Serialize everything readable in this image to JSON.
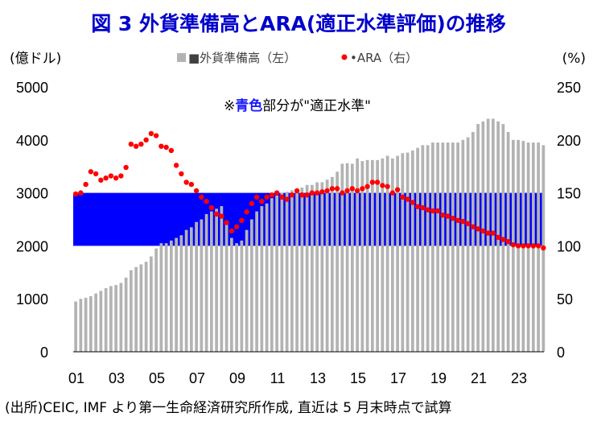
{
  "chart_data": {
    "type": "bar",
    "title": "図 3 外貨準備高とARA(適正水準評価)の推移",
    "left_unit": "(億ドル)",
    "right_unit": "(%)",
    "legend": [
      {
        "label": "■外貨準備高（左）",
        "marker": "bar"
      },
      {
        "label": "•ARA（右）",
        "marker": "dot"
      }
    ],
    "annotation": {
      "prefix": "※",
      "highlight": "青色",
      "suffix": "部分が\"適正水準\"",
      "highlight_color": "#1a1aff"
    },
    "left_axis": {
      "ylim": [
        0,
        5000
      ],
      "ticks": [
        "0",
        "1000",
        "2000",
        "3000",
        "4000",
        "5000"
      ]
    },
    "right_axis": {
      "ylim": [
        0,
        250
      ],
      "ticks": [
        "0",
        "50",
        "100",
        "150",
        "200",
        "250"
      ]
    },
    "x_axis": {
      "range_years": [
        2001,
        2024.4
      ],
      "tick_labels": [
        "01",
        "03",
        "05",
        "07",
        "09",
        "11",
        "13",
        "15",
        "17",
        "19",
        "21",
        "23"
      ],
      "tick_years": [
        2001,
        2003,
        2005,
        2007,
        2009,
        2011,
        2013,
        2015,
        2017,
        2019,
        2021,
        2023
      ]
    },
    "adequacy_band": {
      "from": 100,
      "to": 150,
      "axis": "right",
      "color": "#0000ff"
    },
    "bar_color": "#b3b3b3",
    "dot_color": "#ff0000",
    "reserves": {
      "dates": [
        2001.0,
        2001.25,
        2001.5,
        2001.75,
        2002.0,
        2002.25,
        2002.5,
        2002.75,
        2003.0,
        2003.25,
        2003.5,
        2003.75,
        2004.0,
        2004.25,
        2004.5,
        2004.75,
        2005.0,
        2005.25,
        2005.5,
        2005.75,
        2006.0,
        2006.25,
        2006.5,
        2006.75,
        2007.0,
        2007.25,
        2007.5,
        2007.75,
        2008.0,
        2008.25,
        2008.5,
        2008.75,
        2009.0,
        2009.25,
        2009.5,
        2009.75,
        2010.0,
        2010.25,
        2010.5,
        2010.75,
        2011.0,
        2011.25,
        2011.5,
        2011.75,
        2012.0,
        2012.25,
        2012.5,
        2012.75,
        2013.0,
        2013.25,
        2013.5,
        2013.75,
        2014.0,
        2014.25,
        2014.5,
        2014.75,
        2015.0,
        2015.25,
        2015.5,
        2015.75,
        2016.0,
        2016.25,
        2016.5,
        2016.75,
        2017.0,
        2017.25,
        2017.5,
        2017.75,
        2018.0,
        2018.25,
        2018.5,
        2018.75,
        2019.0,
        2019.25,
        2019.5,
        2019.75,
        2020.0,
        2020.25,
        2020.5,
        2020.75,
        2021.0,
        2021.25,
        2021.5,
        2021.75,
        2022.0,
        2022.25,
        2022.5,
        2022.75,
        2023.0,
        2023.25,
        2023.5,
        2023.75,
        2024.0,
        2024.25
      ],
      "values": [
        950,
        1000,
        1020,
        1050,
        1100,
        1150,
        1200,
        1240,
        1260,
        1300,
        1400,
        1540,
        1600,
        1650,
        1700,
        1800,
        1950,
        2050,
        2050,
        2100,
        2150,
        2200,
        2300,
        2350,
        2450,
        2500,
        2600,
        2650,
        2700,
        2750,
        2450,
        2150,
        2050,
        2100,
        2300,
        2500,
        2650,
        2750,
        2800,
        2900,
        2950,
        3000,
        3020,
        3050,
        3050,
        3100,
        3150,
        3150,
        3200,
        3200,
        3250,
        3300,
        3400,
        3550,
        3560,
        3550,
        3650,
        3600,
        3620,
        3620,
        3620,
        3650,
        3700,
        3650,
        3700,
        3750,
        3760,
        3800,
        3850,
        3900,
        3900,
        3950,
        3950,
        3950,
        3950,
        3950,
        3950,
        4000,
        4050,
        4150,
        4300,
        4350,
        4400,
        4400,
        4350,
        4300,
        4150,
        4000,
        4000,
        3980,
        3950,
        3950,
        3950,
        3900
      ]
    },
    "ara": {
      "dates": [
        2001.0,
        2001.25,
        2001.5,
        2001.75,
        2002.0,
        2002.25,
        2002.5,
        2002.75,
        2003.0,
        2003.25,
        2003.5,
        2003.75,
        2004.0,
        2004.25,
        2004.5,
        2004.75,
        2005.0,
        2005.25,
        2005.5,
        2005.75,
        2006.0,
        2006.25,
        2006.5,
        2006.75,
        2007.0,
        2007.25,
        2007.5,
        2007.75,
        2008.0,
        2008.25,
        2008.5,
        2008.75,
        2009.0,
        2009.25,
        2009.5,
        2009.75,
        2010.0,
        2010.25,
        2010.5,
        2010.75,
        2011.0,
        2011.25,
        2011.5,
        2011.75,
        2012.0,
        2012.25,
        2012.5,
        2012.75,
        2013.0,
        2013.25,
        2013.5,
        2013.75,
        2014.0,
        2014.25,
        2014.5,
        2014.75,
        2015.0,
        2015.25,
        2015.5,
        2015.75,
        2016.0,
        2016.25,
        2016.5,
        2016.75,
        2017.0,
        2017.25,
        2017.5,
        2017.75,
        2018.0,
        2018.25,
        2018.5,
        2018.75,
        2019.0,
        2019.25,
        2019.5,
        2019.75,
        2020.0,
        2020.25,
        2020.5,
        2020.75,
        2021.0,
        2021.25,
        2021.5,
        2021.75,
        2022.0,
        2022.25,
        2022.5,
        2022.75,
        2023.0,
        2023.25,
        2023.5,
        2023.75,
        2024.0,
        2024.25
      ],
      "values": [
        149,
        150,
        158,
        170,
        168,
        162,
        164,
        166,
        164,
        166,
        174,
        196,
        194,
        196,
        200,
        206,
        204,
        194,
        193,
        190,
        176,
        168,
        160,
        158,
        152,
        146,
        142,
        136,
        130,
        128,
        122,
        114,
        118,
        124,
        132,
        140,
        146,
        142,
        146,
        148,
        150,
        146,
        144,
        148,
        152,
        148,
        148,
        150,
        150,
        151,
        152,
        154,
        154,
        150,
        152,
        154,
        152,
        154,
        156,
        160,
        160,
        157,
        156,
        150,
        153,
        146,
        144,
        141,
        137,
        136,
        134,
        133,
        133,
        129,
        128,
        126,
        124,
        123,
        121,
        118,
        116,
        114,
        112,
        112,
        108,
        106,
        104,
        101,
        100,
        100,
        100,
        100,
        100,
        98
      ]
    }
  },
  "source_note": "(出所)CEIC, IMF より第一生命経済研究所作成, 直近は 5 月末時点で試算"
}
